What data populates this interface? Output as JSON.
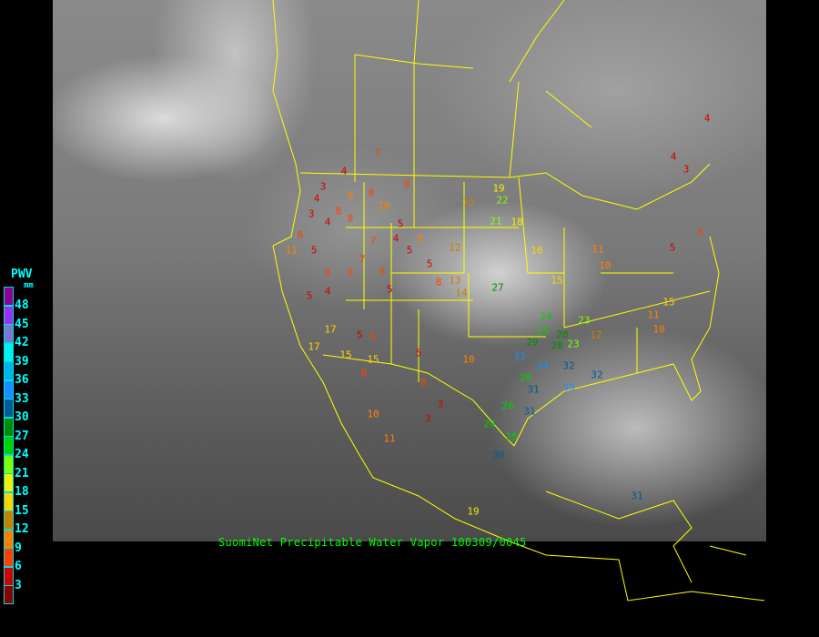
{
  "caption": "SuomiNet Precipitable Water Vapor 100309/0045",
  "legend": {
    "title": "PWV",
    "unit": "mm",
    "labels": [
      "48",
      "45",
      "42",
      "39",
      "36",
      "33",
      "30",
      "27",
      "24",
      "21",
      "18",
      "15",
      "12",
      "9",
      "6",
      "3"
    ],
    "colors": [
      "#8e0096",
      "#9632f0",
      "#7a78d2",
      "#00f0f0",
      "#00b4e8",
      "#1e8cff",
      "#005a96",
      "#008c00",
      "#00d200",
      "#80ff00",
      "#f0f000",
      "#ffd200",
      "#c88200",
      "#ff8000",
      "#ff4000",
      "#d20000",
      "#8c0000"
    ]
  },
  "colors": {
    "borders": "#ffff00",
    "caption": "#00ff00",
    "legend_text": "#00ffff"
  },
  "stations": [
    "7",
    "4",
    "3",
    "4",
    "3",
    "8",
    "8",
    "5",
    "9",
    "8",
    "7",
    "6",
    "5",
    "4",
    "5",
    "5",
    "9",
    "8",
    "10",
    "11",
    "8",
    "5",
    "4",
    "7",
    "5",
    "8",
    "3",
    "5",
    "6",
    "17",
    "15",
    "10",
    "11",
    "15",
    "8",
    "5",
    "8",
    "10",
    "12",
    "19",
    "22",
    "21",
    "18",
    "13",
    "16",
    "15",
    "27",
    "28",
    "26",
    "25",
    "29",
    "33",
    "34",
    "31",
    "32",
    "33",
    "28",
    "23",
    "26",
    "24",
    "30",
    "31",
    "25",
    "6",
    "4",
    "8",
    "3",
    "4",
    "4",
    "3",
    "5",
    "6",
    "13",
    "11",
    "10",
    "15",
    "10",
    "12",
    "11",
    "17",
    "19",
    "24",
    "14",
    "23",
    "31",
    "32"
  ]
}
